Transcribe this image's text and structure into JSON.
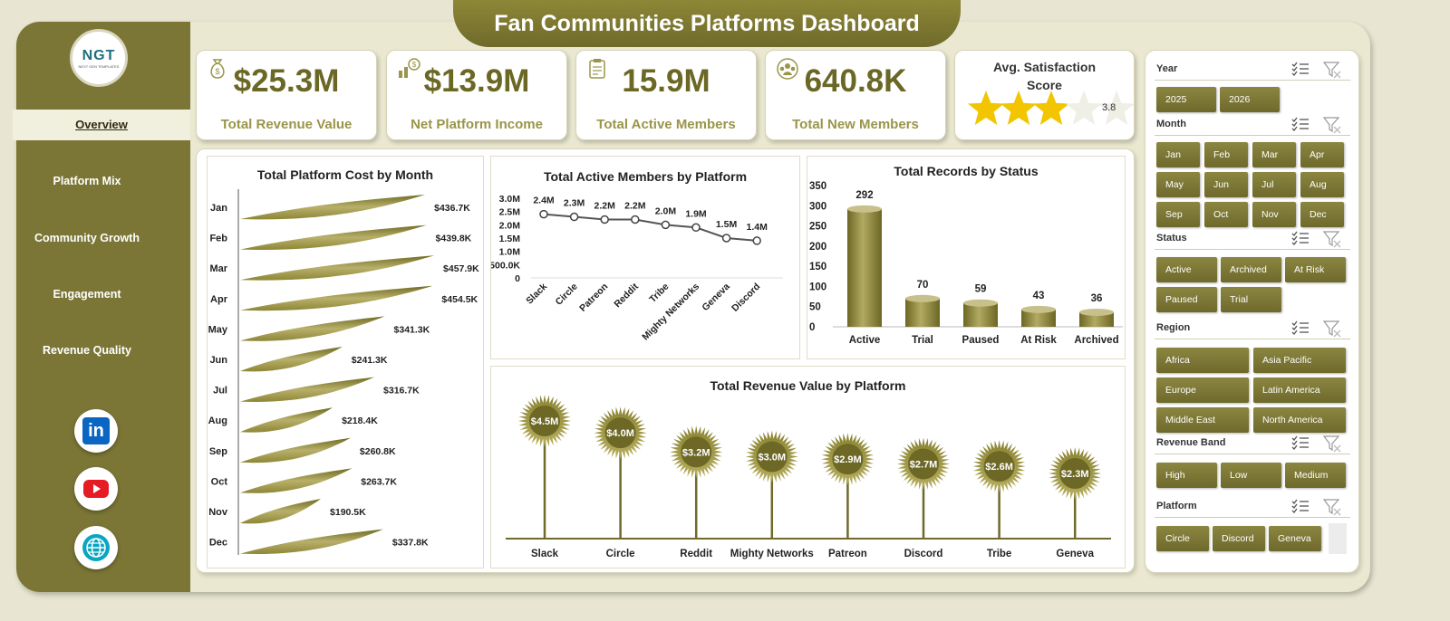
{
  "header": {
    "title": "Fan Communities Platforms Dashboard"
  },
  "logo": {
    "text": "NGT",
    "tagline": "NEXT GEN TEMPLATES"
  },
  "nav": {
    "items": [
      {
        "label": "Overview",
        "active": true
      },
      {
        "label": "Platform Mix"
      },
      {
        "label": "Community Growth"
      },
      {
        "label": "Engagement"
      },
      {
        "label": "Revenue Quality"
      }
    ]
  },
  "social": [
    {
      "icon": "linkedin-icon",
      "text": "in"
    },
    {
      "icon": "youtube-icon"
    },
    {
      "icon": "globe-icon"
    }
  ],
  "kpis": [
    {
      "value": "$25.3M",
      "label": "Total Revenue Value",
      "icon": "money-bag-icon"
    },
    {
      "value": "$13.9M",
      "label": "Net Platform Income",
      "icon": "income-chart-icon"
    },
    {
      "value": "15.9M",
      "label": "Total Active Members",
      "icon": "clipboard-icon"
    },
    {
      "value": "640.8K",
      "label": "Total New Members",
      "icon": "community-icon"
    }
  ],
  "satisfaction": {
    "title_line1": "Avg. Satisfaction",
    "title_line2": "Score",
    "value": "3.8",
    "stars": 3.8,
    "max": 5
  },
  "chart_data": [
    {
      "type": "bar",
      "title": "Total Platform Cost by Month",
      "orientation": "horizontal",
      "categories": [
        "Jan",
        "Feb",
        "Mar",
        "Apr",
        "May",
        "Jun",
        "Jul",
        "Aug",
        "Sep",
        "Oct",
        "Nov",
        "Dec"
      ],
      "values": [
        436.7,
        439.8,
        457.9,
        454.5,
        341.3,
        241.3,
        316.7,
        218.4,
        260.8,
        263.7,
        190.5,
        337.8
      ],
      "labels": [
        "$436.7K",
        "$439.8K",
        "$457.9K",
        "$454.5K",
        "$341.3K",
        "$241.3K",
        "$316.7K",
        "$218.4K",
        "$260.8K",
        "$263.7K",
        "$190.5K",
        "$337.8K"
      ]
    },
    {
      "type": "line",
      "title": "Total Active Members by Platform",
      "categories": [
        "Slack",
        "Circle",
        "Patreon",
        "Reddit",
        "Tribe",
        "Mighty Networks",
        "Geneva",
        "Discord"
      ],
      "values": [
        2.4,
        2.3,
        2.2,
        2.2,
        2.0,
        1.9,
        1.5,
        1.4
      ],
      "labels": [
        "2.4M",
        "2.3M",
        "2.2M",
        "2.2M",
        "2.0M",
        "1.9M",
        "1.5M",
        "1.4M"
      ],
      "yticks": [
        "0",
        "500.0K",
        "1.0M",
        "1.5M",
        "2.0M",
        "2.5M",
        "3.0M"
      ],
      "ylim": [
        0,
        3.0
      ]
    },
    {
      "type": "bar",
      "title": "Total Records by Status",
      "categories": [
        "Active",
        "Trial",
        "Paused",
        "At Risk",
        "Archived"
      ],
      "values": [
        292,
        70,
        59,
        43,
        36
      ],
      "yticks": [
        "0",
        "50",
        "100",
        "150",
        "200",
        "250",
        "300",
        "350"
      ],
      "ylim": [
        0,
        350
      ]
    },
    {
      "type": "bar",
      "title": "Total Revenue Value by Platform",
      "categories": [
        "Slack",
        "Circle",
        "Reddit",
        "Mighty Networks",
        "Patreon",
        "Discord",
        "Tribe",
        "Geneva"
      ],
      "values": [
        4.5,
        4.0,
        3.2,
        3.0,
        2.9,
        2.7,
        2.6,
        2.3
      ],
      "labels": [
        "$4.5M",
        "$4.0M",
        "$3.2M",
        "$3.0M",
        "$2.9M",
        "$2.7M",
        "$2.6M",
        "$2.3M"
      ]
    }
  ],
  "slicers": [
    {
      "title": "Year",
      "items": [
        "2025",
        "2026"
      ]
    },
    {
      "title": "Month",
      "items": [
        "Jan",
        "Feb",
        "Mar",
        "Apr",
        "May",
        "Jun",
        "Jul",
        "Aug",
        "Sep",
        "Oct",
        "Nov",
        "Dec"
      ]
    },
    {
      "title": "Status",
      "items": [
        "Active",
        "Archived",
        "At Risk",
        "Paused",
        "Trial"
      ]
    },
    {
      "title": "Region",
      "items": [
        "Africa",
        "Asia Pacific",
        "Europe",
        "Latin America",
        "Middle East",
        "North America"
      ]
    },
    {
      "title": "Revenue Band",
      "items": [
        "High",
        "Low",
        "Medium"
      ]
    },
    {
      "title": "Platform",
      "items": [
        "Circle",
        "Discord",
        "Geneva"
      ]
    }
  ],
  "colors": {
    "olive": "#7b7636",
    "accent": "#9a9548",
    "star": "#f2c500"
  }
}
